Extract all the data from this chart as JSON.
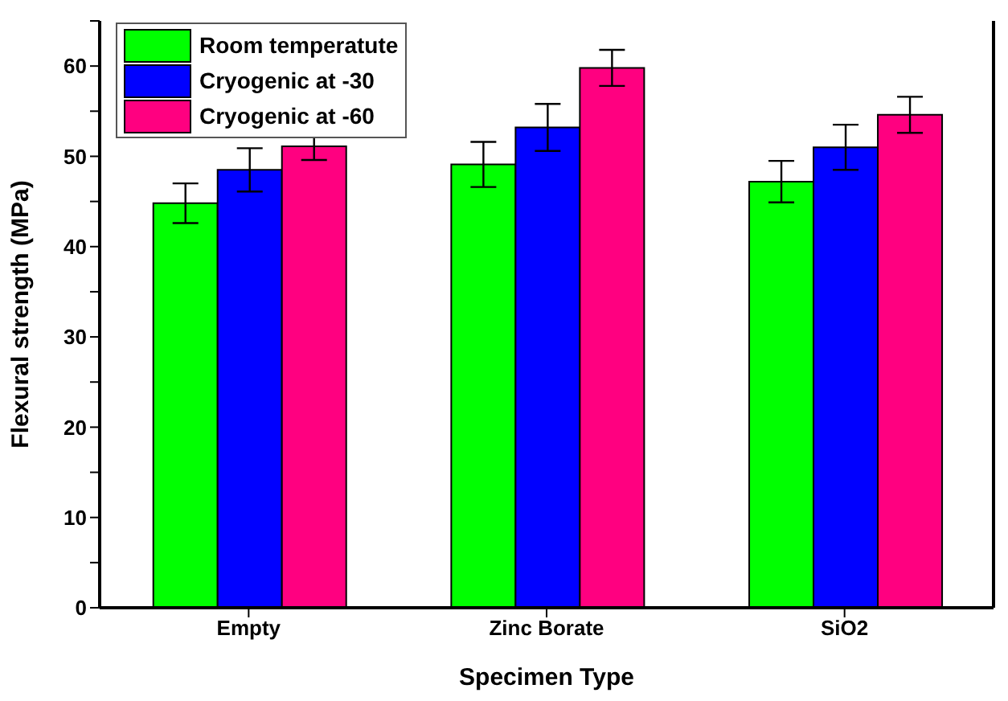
{
  "chart_data": {
    "type": "bar",
    "xlabel": "Specimen Type",
    "ylabel": "Flexural strength (MPa)",
    "categories": [
      "Empty",
      "Zinc Borate",
      "SiO2"
    ],
    "series": [
      {
        "name": "Room temperatute",
        "color": "#00ff00",
        "values": [
          44.8,
          49.1,
          47.2
        ],
        "errors": [
          2.2,
          2.5,
          2.3
        ]
      },
      {
        "name": "Cryogenic at -30",
        "color": "#0000ff",
        "values": [
          48.5,
          53.2,
          51.0
        ],
        "errors": [
          2.4,
          2.6,
          2.5
        ]
      },
      {
        "name": "Cryogenic at -60",
        "color": "#ff0080",
        "values": [
          51.1,
          59.8,
          54.6
        ],
        "errors": [
          1.5,
          2.0,
          2.0
        ]
      }
    ],
    "ylim": [
      0,
      65
    ],
    "yticks": [
      0,
      {
        "value": 5,
        "label": null
      },
      10,
      {
        "value": 15,
        "label": null
      },
      20,
      {
        "value": 25,
        "label": null
      },
      30,
      {
        "value": 35,
        "label": null
      },
      40,
      {
        "value": 45,
        "label": null
      },
      50,
      {
        "value": 55,
        "label": null
      },
      60,
      {
        "value": 65,
        "label": null
      }
    ],
    "grid": false,
    "legend": "top left"
  }
}
